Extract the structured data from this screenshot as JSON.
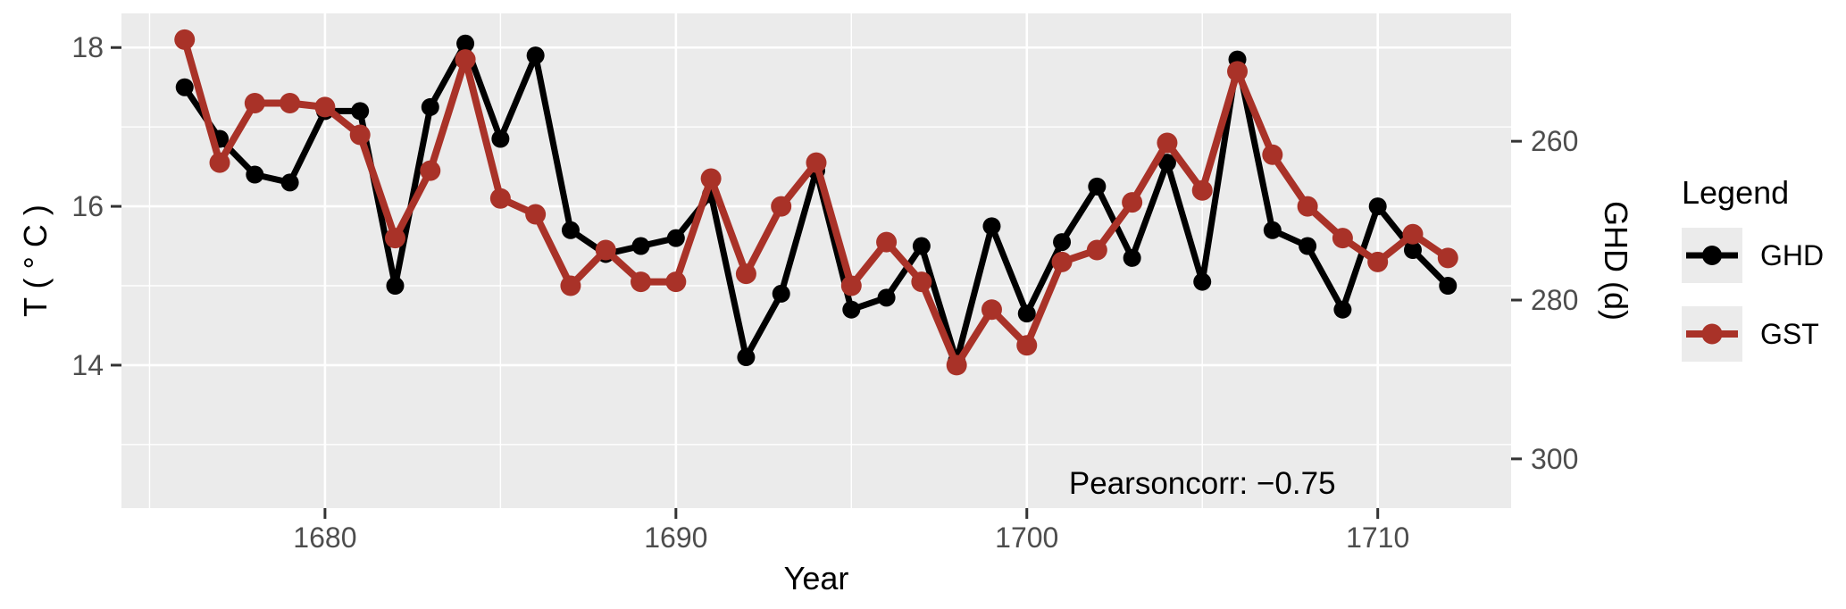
{
  "figure": {
    "x_axis_title": "Year",
    "y_axis_title_left": "T ( ° C )",
    "y_axis_title_right": "GHD (d)"
  },
  "legend": {
    "title": "Legend",
    "items": [
      {
        "label": "GHD",
        "color": "#000000"
      },
      {
        "label": "GST",
        "color": "#a93228"
      }
    ]
  },
  "chart_data": {
    "type": "line",
    "title": "",
    "xlabel": "Year",
    "ylabel_left": "T ( ° C )",
    "ylabel_right": "GHD (d)",
    "x": [
      1676,
      1677,
      1678,
      1679,
      1680,
      1681,
      1682,
      1683,
      1684,
      1685,
      1686,
      1687,
      1688,
      1689,
      1690,
      1691,
      1692,
      1693,
      1694,
      1695,
      1696,
      1697,
      1698,
      1699,
      1700,
      1701,
      1702,
      1703,
      1704,
      1705,
      1706,
      1707,
      1708,
      1709,
      1710,
      1711,
      1712
    ],
    "series": [
      {
        "name": "GHD",
        "color": "#000000",
        "axis": "right",
        "line_width": 7,
        "marker_radius": 10,
        "values": [
          17.5,
          16.85,
          16.4,
          16.3,
          17.2,
          17.2,
          15.0,
          17.25,
          18.05,
          16.85,
          17.9,
          15.7,
          15.4,
          15.5,
          15.6,
          16.15,
          14.1,
          14.9,
          16.45,
          14.7,
          14.85,
          15.5,
          14.05,
          15.75,
          14.65,
          15.55,
          16.25,
          15.35,
          16.55,
          15.05,
          17.85,
          15.7,
          15.5,
          14.7,
          16.0,
          15.45,
          15.0
        ]
      },
      {
        "name": "GST",
        "color": "#a93228",
        "axis": "left",
        "line_width": 8,
        "marker_radius": 11.5,
        "values": [
          18.1,
          16.55,
          17.3,
          17.3,
          17.25,
          16.9,
          15.6,
          16.45,
          17.85,
          16.1,
          15.9,
          15.0,
          15.45,
          15.05,
          15.05,
          16.35,
          15.15,
          16.0,
          16.55,
          15.0,
          15.55,
          15.05,
          14.0,
          14.7,
          14.25,
          15.3,
          15.45,
          16.05,
          16.8,
          16.2,
          17.7,
          16.65,
          16.0,
          15.6,
          15.3,
          15.65,
          15.35
        ]
      }
    ],
    "xlim": [
      1674.2,
      1713.8
    ],
    "ylim": [
      12.2,
      18.43
    ],
    "x_major_ticks": [
      1680,
      1690,
      1700,
      1710
    ],
    "x_minor_gridlines": [
      1675,
      1685,
      1695,
      1705
    ],
    "y_major_ticks": [
      18,
      16,
      14
    ],
    "y_minor_gridlines": [
      17,
      15,
      13
    ],
    "right_axis_ticks": [
      260,
      280,
      300
    ],
    "right_axis_reversed": true,
    "sec_axis_mapping": "GHD days = 428.2 − 10 × T(°C)",
    "sec_axis": {
      "a": 428.2,
      "b": 10
    },
    "annotation": {
      "text": "Pearsoncorr: −0.75",
      "x_year": 1705,
      "y_degC": 12.38
    },
    "panel_background": "#ebebeb",
    "grid_color": "#ffffff",
    "tick_color": "#333333",
    "tick_label_color": "#4d4d4d",
    "legend_position": "right",
    "grid": "major+minor white on gray panel"
  }
}
